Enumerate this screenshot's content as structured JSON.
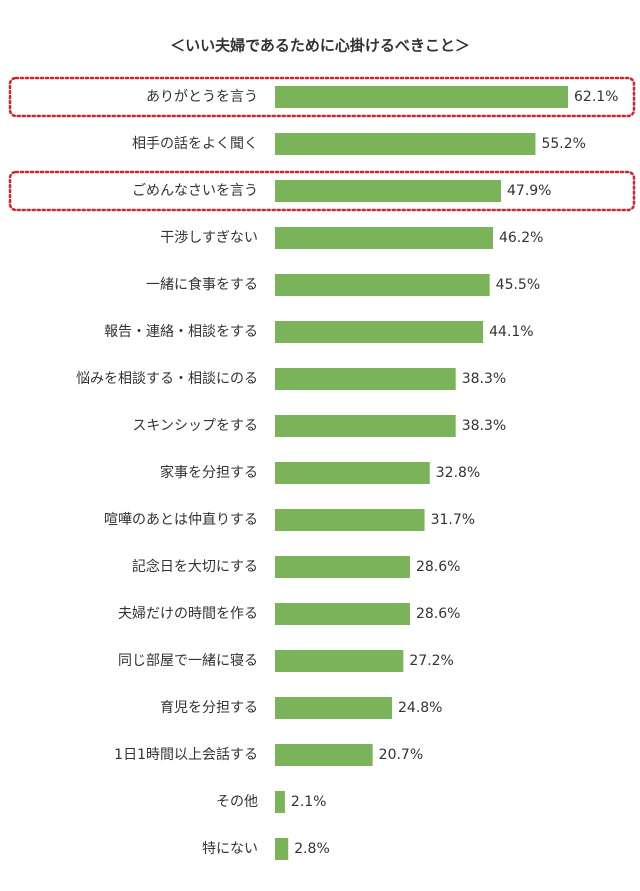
{
  "chart_data": {
    "type": "bar",
    "orientation": "horizontal",
    "title": "＜いい夫婦であるために心掛けるべきこと＞",
    "categories": [
      "ありがとうを言う",
      "相手の話をよく聞く",
      "ごめんなさいを言う",
      "干渉しすぎない",
      "一緒に食事をする",
      "報告・連絡・相談をする",
      "悩みを相談する・相談にのる",
      "スキンシップをする",
      "家事を分担する",
      "喧嘩のあとは仲直りする",
      "記念日を大切にする",
      "夫婦だけの時間を作る",
      "同じ部屋で一緒に寝る",
      "育児を分担する",
      "1日1時間以上会話する",
      "その他",
      "特にない"
    ],
    "values": [
      62.1,
      55.2,
      47.9,
      46.2,
      45.5,
      44.1,
      38.3,
      38.3,
      32.8,
      31.7,
      28.6,
      28.6,
      27.2,
      24.8,
      20.7,
      2.1,
      2.8
    ],
    "value_labels": [
      "62.1%",
      "55.2%",
      "47.9%",
      "46.2%",
      "45.5%",
      "44.1%",
      "38.3%",
      "38.3%",
      "32.8%",
      "31.7%",
      "28.6%",
      "28.6%",
      "27.2%",
      "24.8%",
      "20.7%",
      "2.1%",
      "2.8%"
    ],
    "color": "#7bb35a",
    "highlight_color": "#d9202c",
    "highlighted": [
      0,
      2
    ]
  }
}
